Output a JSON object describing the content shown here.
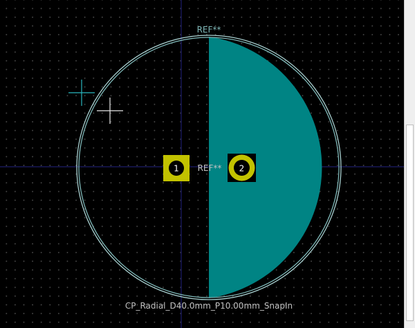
{
  "editor": {
    "footprint_name": "CP_Radial_D40.0mm_P10.00mm_SnapIn",
    "reference_silkscreen": "REF**",
    "reference_fab": "REF**"
  },
  "pads": [
    {
      "number": "1",
      "shape": "rect"
    },
    {
      "number": "2",
      "shape": "circle"
    }
  ],
  "colors": {
    "background": "#000000",
    "silkscreen": "#7fb8b8",
    "courtyard": "#a9d1d1",
    "copper_fill": "#008484",
    "fab_text": "#c2c2c2",
    "pad": "#c2c200",
    "axis": "#1c1c6a"
  },
  "icons": {
    "anchor_marker": "cross-hair",
    "cursor": "crosshair-cursor"
  }
}
